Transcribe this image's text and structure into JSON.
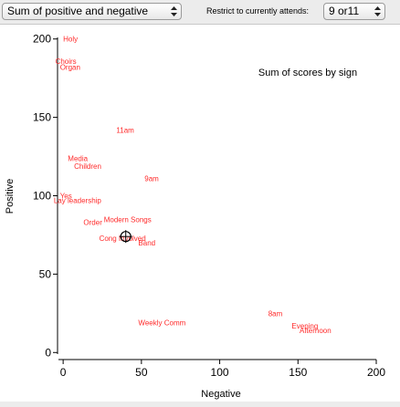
{
  "toolbar": {
    "measure_value": "Sum of positive and negative",
    "restrict_label": "Restrict to currently attends:",
    "attend_value": "9 or11"
  },
  "colors": {
    "point_label": "#ff2a2a",
    "axis": "#000000",
    "marker": "#000000"
  },
  "chart_data": {
    "type": "scatter",
    "title": "Sum of scores by sign",
    "xlabel": "Negative",
    "ylabel": "Positive",
    "xlim": [
      -3,
      200
    ],
    "ylim": [
      -1,
      201
    ],
    "xticks": [
      0,
      50,
      100,
      150,
      200
    ],
    "yticks": [
      0,
      50,
      100,
      150,
      200
    ],
    "grid": false,
    "marker": {
      "label": "crosshair",
      "x": 40,
      "y": 74
    },
    "points": [
      {
        "label": "Holy",
        "x": 0,
        "y": 200
      },
      {
        "label": "Choirs",
        "x": -5,
        "y": 186
      },
      {
        "label": "Organ",
        "x": -2,
        "y": 182
      },
      {
        "label": "11am",
        "x": 34,
        "y": 142
      },
      {
        "label": "Media",
        "x": 3,
        "y": 124
      },
      {
        "label": "Children",
        "x": 7,
        "y": 119
      },
      {
        "label": "9am",
        "x": 52,
        "y": 111
      },
      {
        "label": "Yes",
        "x": -2,
        "y": 100
      },
      {
        "label": "Lay leadership",
        "x": -6,
        "y": 97
      },
      {
        "label": "Modern Songs",
        "x": 26,
        "y": 85
      },
      {
        "label": "Order",
        "x": 13,
        "y": 83
      },
      {
        "label": "Cong Involved",
        "x": 23,
        "y": 73
      },
      {
        "label": "Band",
        "x": 48,
        "y": 70
      },
      {
        "label": "8am",
        "x": 131,
        "y": 25
      },
      {
        "label": "Weekly Comm",
        "x": 48,
        "y": 19
      },
      {
        "label": "Evening",
        "x": 146,
        "y": 17
      },
      {
        "label": "Afternoon",
        "x": 151,
        "y": 14
      }
    ]
  }
}
